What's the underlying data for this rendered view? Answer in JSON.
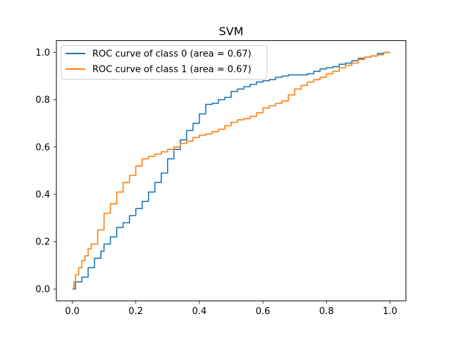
{
  "chart_data": {
    "type": "line",
    "title": "SVM",
    "xlabel": "",
    "ylabel": "",
    "xlim": [
      -0.05,
      1.05
    ],
    "ylim": [
      -0.05,
      1.05
    ],
    "xticks": [
      0.0,
      0.2,
      0.4,
      0.6,
      0.8,
      1.0
    ],
    "xtick_labels": [
      "0.0",
      "0.2",
      "0.4",
      "0.6",
      "0.8",
      "1.0"
    ],
    "yticks": [
      0.0,
      0.2,
      0.4,
      0.6,
      0.8,
      1.0
    ],
    "ytick_labels": [
      "0.0",
      "0.2",
      "0.4",
      "0.6",
      "0.8",
      "1.0"
    ],
    "grid": false,
    "legend_position": "top-left",
    "series": [
      {
        "name": "ROC curve of class 0 (area = 0.67)",
        "color": "#1f77b4",
        "x": [
          0.0,
          0.01,
          0.03,
          0.05,
          0.07,
          0.09,
          0.1,
          0.12,
          0.14,
          0.16,
          0.18,
          0.2,
          0.22,
          0.24,
          0.26,
          0.28,
          0.3,
          0.32,
          0.34,
          0.36,
          0.38,
          0.4,
          0.42,
          0.44,
          0.46,
          0.48,
          0.5,
          0.52,
          0.54,
          0.56,
          0.58,
          0.6,
          0.62,
          0.64,
          0.66,
          0.68,
          0.7,
          0.72,
          0.74,
          0.76,
          0.78,
          0.8,
          0.82,
          0.84,
          0.86,
          0.88,
          0.9,
          0.92,
          0.94,
          0.96,
          0.98,
          1.0
        ],
        "y": [
          0.0,
          0.03,
          0.05,
          0.09,
          0.13,
          0.16,
          0.19,
          0.22,
          0.26,
          0.28,
          0.31,
          0.34,
          0.37,
          0.41,
          0.45,
          0.49,
          0.55,
          0.59,
          0.63,
          0.67,
          0.7,
          0.74,
          0.78,
          0.785,
          0.8,
          0.81,
          0.835,
          0.845,
          0.855,
          0.865,
          0.875,
          0.88,
          0.885,
          0.895,
          0.9,
          0.905,
          0.905,
          0.905,
          0.91,
          0.92,
          0.93,
          0.935,
          0.94,
          0.95,
          0.955,
          0.965,
          0.975,
          0.98,
          0.985,
          0.995,
          1.0,
          1.0
        ]
      },
      {
        "name": "ROC curve of class 1 (area = 0.67)",
        "color": "#ff7f0e",
        "x": [
          0.0,
          0.005,
          0.01,
          0.02,
          0.03,
          0.04,
          0.05,
          0.06,
          0.08,
          0.1,
          0.12,
          0.14,
          0.16,
          0.18,
          0.2,
          0.22,
          0.24,
          0.26,
          0.28,
          0.3,
          0.32,
          0.34,
          0.36,
          0.38,
          0.4,
          0.42,
          0.44,
          0.46,
          0.48,
          0.5,
          0.52,
          0.54,
          0.56,
          0.58,
          0.6,
          0.62,
          0.64,
          0.66,
          0.68,
          0.7,
          0.72,
          0.74,
          0.76,
          0.78,
          0.8,
          0.82,
          0.84,
          0.86,
          0.88,
          0.9,
          0.92,
          0.94,
          0.96,
          0.98,
          1.0
        ],
        "y": [
          0.0,
          0.03,
          0.06,
          0.09,
          0.12,
          0.14,
          0.17,
          0.19,
          0.25,
          0.32,
          0.36,
          0.41,
          0.45,
          0.48,
          0.52,
          0.55,
          0.56,
          0.57,
          0.58,
          0.59,
          0.6,
          0.615,
          0.625,
          0.64,
          0.65,
          0.655,
          0.665,
          0.675,
          0.69,
          0.705,
          0.715,
          0.72,
          0.73,
          0.745,
          0.765,
          0.775,
          0.785,
          0.795,
          0.82,
          0.845,
          0.86,
          0.875,
          0.885,
          0.895,
          0.91,
          0.92,
          0.935,
          0.945,
          0.955,
          0.97,
          0.98,
          0.985,
          0.99,
          1.0,
          1.0
        ]
      }
    ]
  }
}
